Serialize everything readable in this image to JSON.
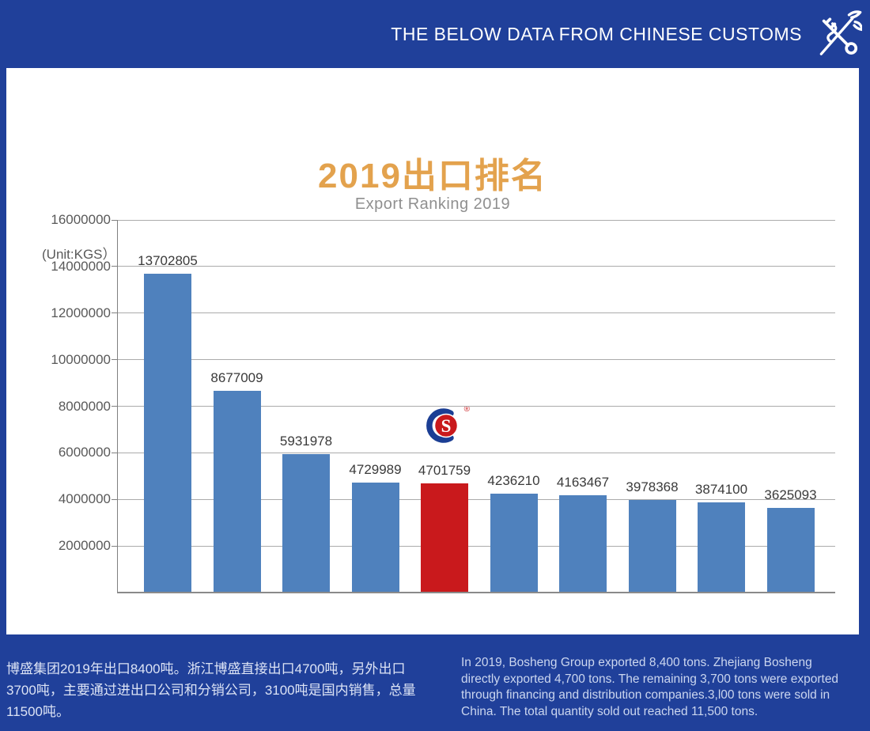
{
  "header": {
    "title": "THE BELOW DATA FROM CHINESE CUSTOMS"
  },
  "main": {
    "title": "2019出口排名",
    "subtitle": "Export Ranking 2019",
    "unit_label": "(Unit:KGS）"
  },
  "chart_data": {
    "type": "bar",
    "title": "2019出口排名 / Export Ranking 2019",
    "ylabel": "(Unit:KGS)",
    "xlabel": "",
    "categories": [
      "",
      "",
      "",
      "",
      "",
      "",
      "",
      "",
      "",
      ""
    ],
    "values": [
      13702805,
      8677009,
      5931978,
      4729989,
      4701759,
      4236210,
      4163467,
      3978368,
      3874100,
      3625093
    ],
    "value_labels": [
      "13702805",
      "8677009",
      "5931978",
      "4729989",
      "4701759",
      "4236210",
      "4163467",
      "3978368",
      "3874100",
      "3625093"
    ],
    "ylim": [
      0,
      16000000
    ],
    "yticks": [
      2000000,
      4000000,
      6000000,
      8000000,
      10000000,
      12000000,
      14000000,
      16000000
    ],
    "grid": true,
    "legend_position": "none",
    "highlight_index": 4,
    "bar_color": "#4F81BD",
    "highlight_color": "#C9191C"
  },
  "brand_logo": {
    "letter": "S",
    "registered": "®",
    "ring_color": "#1B3E94",
    "circle_color": "#C9191C"
  },
  "footer": {
    "zh": "博盛集团2019年出口8400吨。浙江博盛直接出口4700吨，另外出口3700吨，主要通过进出口公司和分销公司，3100吨是国内销售，总量11500吨。",
    "en": "In 2019, Bosheng Group exported 8,400 tons. Zhejiang Bosheng directly exported 4,700 tons. The remaining 3,700 tons were exported through financing and distribution companies.3,l00 tons were sold in China. The total quantity sold out reached 11,500 tons."
  },
  "colors": {
    "brand_blue": "#20409A",
    "title_gold": "#E3A24D",
    "bar_blue": "#4F81BD",
    "bar_red": "#C9191C"
  }
}
